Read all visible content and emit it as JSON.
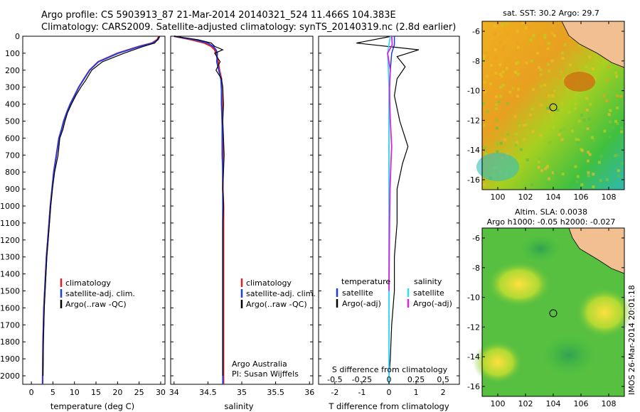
{
  "header": {
    "line1": "Argo profile: CS 5903913_87 21-Mar-2014 20140321_524 11.466S 104.383E",
    "line2": "Climatology: CARS2009. Satellite-adjusted climatology: synTS_20140319.nc (2.8d earlier)"
  },
  "colors": {
    "climatology": "#e02020",
    "satellite": "#1a3ee8",
    "argo": "#000000",
    "satellite_s": "#30e0f0",
    "argo_s": "#e020e0"
  },
  "depth_axis": {
    "ticks": [
      "0",
      "100",
      "200",
      "300",
      "400",
      "500",
      "600",
      "700",
      "800",
      "900",
      "1000",
      "1100",
      "1200",
      "1300",
      "1400",
      "1500",
      "1600",
      "1700",
      "1800",
      "1900",
      "2000"
    ]
  },
  "temp_panel": {
    "xlabel": "temperature (deg C)",
    "xticks": [
      "0",
      "5",
      "10",
      "15",
      "20",
      "25",
      "30"
    ],
    "legend": [
      "climatology",
      "satellite-adj. clim.",
      "Argo(..raw -QC)"
    ]
  },
  "sal_panel": {
    "xlabel": "salinity",
    "xticks": [
      "34",
      "34.5",
      "35",
      "35.5",
      "36"
    ],
    "legend": [
      "climatology",
      "satellite-adj. clim.",
      "Argo(..raw -QC)"
    ],
    "note1": "Argo Australia",
    "note2": "PI: Susan Wijffels"
  },
  "diff_panel": {
    "xlabel": "T difference from climatology",
    "top_label": "S difference from climatology",
    "s_ticks": [
      "-0.5",
      "-0.25",
      "0",
      "0.25",
      "0.5"
    ],
    "t_ticks": [
      "-2",
      "-1",
      "0",
      "1",
      "2"
    ],
    "legend_t_title": "temperature",
    "legend_s_title": "salinity",
    "legend_t": [
      "satellite",
      "Argo(-adj)"
    ],
    "legend_s": [
      "satellite",
      "Argo(-adj)"
    ]
  },
  "map_sst": {
    "title": "sat. SST: 30.2  Argo: 29.7",
    "yticks": [
      "-6",
      "-8",
      "-10",
      "-12",
      "-14",
      "-16"
    ],
    "xticks": [
      "100",
      "102",
      "104",
      "106",
      "108"
    ]
  },
  "map_sla": {
    "title1": "Altim. SLA: 0.0038",
    "title2": "Argo h1000: -0.05 h2000: -0.027",
    "yticks": [
      "-6",
      "-8",
      "-10",
      "-12",
      "-14",
      "-16"
    ],
    "xticks": [
      "100",
      "102",
      "104",
      "106",
      "108"
    ]
  },
  "side_stamp": "IMOS 26-Mar-2014 20:01:18",
  "chart_data": [
    {
      "type": "line",
      "title": "",
      "xlabel": "temperature (deg C)",
      "ylabel": "",
      "xlim": [
        -2,
        31
      ],
      "ylim": [
        2050,
        0
      ],
      "series": [
        {
          "name": "climatology",
          "x": [
            29.6,
            29.2,
            28.0,
            25.0,
            20.0,
            15.5,
            13.5,
            12.0,
            11.0,
            10.0,
            9.0,
            8.2,
            7.5,
            7.0,
            6.4,
            5.8,
            5.2,
            4.8,
            4.4,
            4.1,
            3.8,
            3.5,
            3.3,
            3.1,
            2.9,
            2.8,
            2.7,
            2.6
          ],
          "y": [
            0,
            20,
            40,
            60,
            100,
            150,
            200,
            260,
            300,
            350,
            400,
            450,
            500,
            550,
            600,
            700,
            800,
            900,
            1000,
            1100,
            1200,
            1300,
            1400,
            1500,
            1600,
            1700,
            1800,
            2050
          ]
        },
        {
          "name": "satellite-adj. clim.",
          "x": [
            29.8,
            29.4,
            28.2,
            25.2,
            20.2,
            15.6,
            13.5,
            12.0,
            11.0,
            10.0,
            9.0,
            8.2,
            7.5,
            7.0,
            6.4,
            5.8,
            5.2,
            4.8,
            4.4,
            4.1,
            3.8,
            3.5,
            3.3,
            3.1,
            2.9,
            2.8,
            2.7,
            2.6
          ],
          "y": [
            0,
            20,
            40,
            60,
            100,
            150,
            200,
            260,
            300,
            350,
            400,
            450,
            500,
            550,
            600,
            700,
            800,
            900,
            1000,
            1100,
            1200,
            1300,
            1400,
            1500,
            1600,
            1700,
            1800,
            2050
          ]
        },
        {
          "name": "Argo(..raw -QC)",
          "x": [
            29.7,
            29.3,
            28.6,
            26.0,
            21.5,
            16.5,
            14.0,
            12.6,
            11.5,
            10.3,
            9.3,
            8.4,
            7.8,
            7.3,
            6.6,
            6.2,
            5.4,
            4.9,
            4.5,
            4.2,
            3.9,
            3.6,
            3.4,
            3.2,
            3.0,
            2.9,
            2.8,
            2.7
          ],
          "y": [
            0,
            20,
            40,
            60,
            100,
            150,
            200,
            260,
            300,
            350,
            400,
            450,
            500,
            550,
            600,
            700,
            800,
            900,
            1000,
            1100,
            1200,
            1300,
            1400,
            1500,
            1600,
            1700,
            1800,
            2000
          ]
        }
      ]
    },
    {
      "type": "line",
      "title": "",
      "xlabel": "salinity",
      "ylabel": "",
      "xlim": [
        33.95,
        36.05
      ],
      "ylim": [
        2050,
        0
      ],
      "series": [
        {
          "name": "climatology",
          "x": [
            34.0,
            34.25,
            34.45,
            34.55,
            34.6,
            34.62,
            34.65,
            34.67,
            34.7,
            34.7,
            34.71,
            34.71,
            34.72,
            34.72,
            34.72,
            34.72,
            34.73,
            34.73,
            34.73,
            34.73,
            34.73,
            34.73,
            34.73,
            34.73,
            34.73,
            34.73,
            34.73
          ],
          "y": [
            0,
            20,
            40,
            60,
            80,
            100,
            150,
            200,
            250,
            300,
            400,
            500,
            600,
            700,
            800,
            900,
            1000,
            1100,
            1200,
            1300,
            1400,
            1500,
            1600,
            1700,
            1800,
            1900,
            2050
          ]
        },
        {
          "name": "satellite-adj. clim.",
          "x": [
            34.0,
            34.3,
            34.5,
            34.58,
            34.62,
            34.64,
            34.63,
            34.66,
            34.69,
            34.7,
            34.7,
            34.71,
            34.71,
            34.71,
            34.72,
            34.72,
            34.72,
            34.72,
            34.72,
            34.72,
            34.72,
            34.72,
            34.72,
            34.72,
            34.72,
            34.72,
            34.72
          ],
          "y": [
            0,
            20,
            40,
            60,
            80,
            100,
            150,
            200,
            250,
            300,
            400,
            500,
            600,
            700,
            800,
            900,
            1000,
            1100,
            1200,
            1300,
            1400,
            1500,
            1600,
            1700,
            1800,
            1900,
            2050
          ]
        },
        {
          "name": "Argo(..raw -QC)",
          "x": [
            34.0,
            34.35,
            34.55,
            34.6,
            34.72,
            34.6,
            34.68,
            34.62,
            34.7,
            34.72,
            34.73,
            34.72,
            34.73,
            34.74,
            34.73,
            34.72,
            34.73,
            34.72,
            34.72,
            34.72,
            34.72,
            34.72,
            34.72,
            34.72,
            34.72,
            34.72,
            34.72
          ],
          "y": [
            0,
            20,
            40,
            60,
            80,
            100,
            150,
            200,
            250,
            300,
            400,
            500,
            600,
            700,
            800,
            900,
            1000,
            1100,
            1200,
            1300,
            1400,
            1500,
            1600,
            1700,
            1800,
            1900,
            2000
          ]
        }
      ]
    },
    {
      "type": "line",
      "title": "",
      "xlabel": "T difference from climatology",
      "ylabel": "",
      "xlim": [
        -2.6,
        2.6
      ],
      "ylim": [
        2050,
        0
      ],
      "series": [
        {
          "name": "satellite",
          "x": [
            0.2,
            0.2,
            0.1,
            0.05,
            0.02,
            0.0,
            0.0,
            0.0,
            0.0,
            0.0,
            0.0,
            0.0,
            0.0,
            0.0,
            0.0
          ],
          "y": [
            0,
            50,
            100,
            200,
            300,
            400,
            500,
            600,
            800,
            1000,
            1200,
            1400,
            1600,
            1800,
            2050
          ]
        },
        {
          "name": "Argo(-adj)",
          "x": [
            0.1,
            -1.2,
            1.1,
            0.3,
            0.6,
            0.3,
            0.2,
            0.4,
            0.7,
            0.5,
            0.3,
            0.3,
            0.2,
            0.2,
            0.1,
            0.05,
            0.0
          ],
          "y": [
            0,
            40,
            80,
            120,
            180,
            250,
            350,
            500,
            650,
            750,
            900,
            1100,
            1300,
            1500,
            1700,
            1900,
            2000
          ]
        },
        {
          "name": "salinity satellite",
          "x": [
            0.05,
            0.0,
            -0.05,
            -0.02,
            0.0,
            0.0,
            0.0,
            0.0,
            0.0,
            0.0,
            0.0,
            0.0,
            0.0
          ],
          "y": [
            0,
            50,
            100,
            200,
            300,
            400,
            500,
            700,
            900,
            1200,
            1500,
            1800,
            2050
          ]
        },
        {
          "name": "salinity Argo(-adj)",
          "x": [
            0.1,
            0.12,
            -0.05,
            0.05,
            0.02,
            0.03,
            0.05,
            0.1,
            0.07,
            0.04,
            0.02,
            0.01,
            0.0
          ],
          "y": [
            0,
            50,
            100,
            200,
            300,
            400,
            500,
            650,
            750,
            900,
            1100,
            1300,
            1500
          ]
        }
      ]
    }
  ]
}
